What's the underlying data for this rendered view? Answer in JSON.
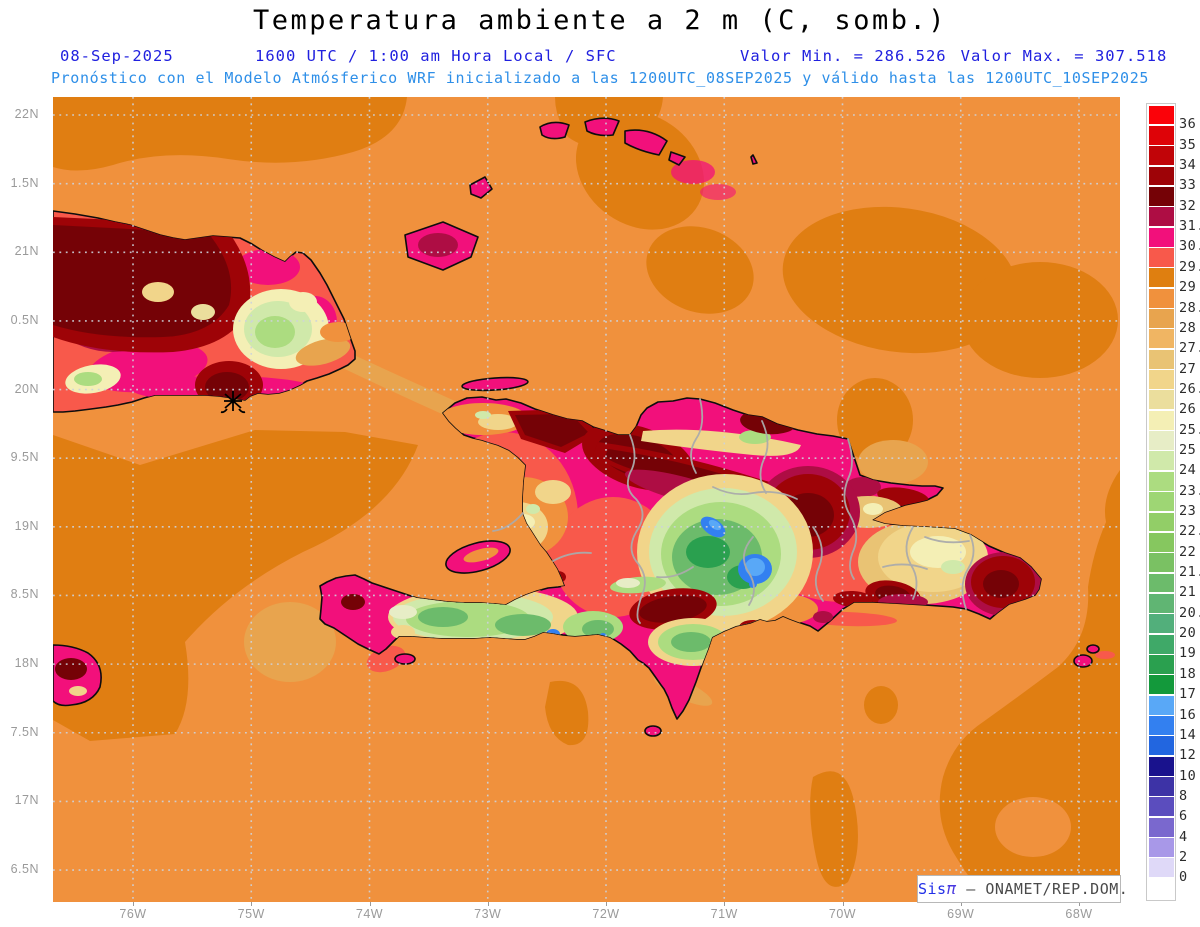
{
  "title": "Temperatura ambiente a 2 m (C, somb.)",
  "subtitle": {
    "date": "08-Sep-2025",
    "time": "1600 UTC / 1:00 am Hora Local / SFC",
    "min_label": "Valor Min. = 286.526",
    "max_label": "Valor Max. = 307.518",
    "forecast": "Pronóstico con el Modelo Atmósferico WRF inicializado a las 1200UTC_08SEP2025 y válido hasta las  1200UTC_10SEP2025"
  },
  "map": {
    "lat_ticks": [
      "22N",
      "1.5N",
      "21N",
      "0.5N",
      "20N",
      "9.5N",
      "19N",
      "8.5N",
      "18N",
      "7.5N",
      "17N",
      "6.5N"
    ],
    "lon_ticks": [
      "76W",
      "75W",
      "74W",
      "73W",
      "72W",
      "71W",
      "70W",
      "69W",
      "68W"
    ]
  },
  "colorbar": {
    "labels": [
      "36",
      "35",
      "34",
      "33",
      "32",
      "31.5",
      "30.7",
      "29.7",
      "29",
      "28.5",
      "28",
      "27.5",
      "27",
      "26.5",
      "26",
      "25.5",
      "25",
      "24",
      "23.5",
      "23",
      "22.5",
      "22",
      "21.5",
      "21",
      "20.5",
      "20",
      "19",
      "18",
      "17",
      "16",
      "14",
      "12",
      "10",
      "8",
      "6",
      "4",
      "2",
      "0"
    ],
    "colors": [
      "#FB0209",
      "#DE0308",
      "#C10408",
      "#9E0307",
      "#750206",
      "#AE0D44",
      "#F2107B",
      "#F8594B",
      "#DF7F10",
      "#F0913D",
      "#E8A44E",
      "#F0B563",
      "#E9C374",
      "#F1D58A",
      "#EBDE9D",
      "#F4EFB5",
      "#E7EDC6",
      "#D0E9AA",
      "#ACDC80",
      "#9ED674",
      "#92CE67",
      "#86C75F",
      "#7AC163",
      "#6CBB6B",
      "#60B573",
      "#52AF7B",
      "#3FA968",
      "#2AA04F",
      "#13993B",
      "#59A8F7",
      "#3380F0",
      "#2266E0",
      "#19128D",
      "#3D33A6",
      "#5B4DBE",
      "#7A68CE",
      "#A898E8",
      "#DFD9F8",
      "#FFFFFF"
    ]
  },
  "watermark": {
    "brand": "Sis",
    "pi": "π",
    "rest": " – ONAMET/REP.DOM."
  },
  "palette": {
    "header_blue": "#2020DF",
    "forecast_blue": "#2E8FE8",
    "axis_gray": "#9A9A9A",
    "ocean_light": "#F0913D",
    "ocean_dark": "#E07E12",
    "coastline": "#000000"
  }
}
